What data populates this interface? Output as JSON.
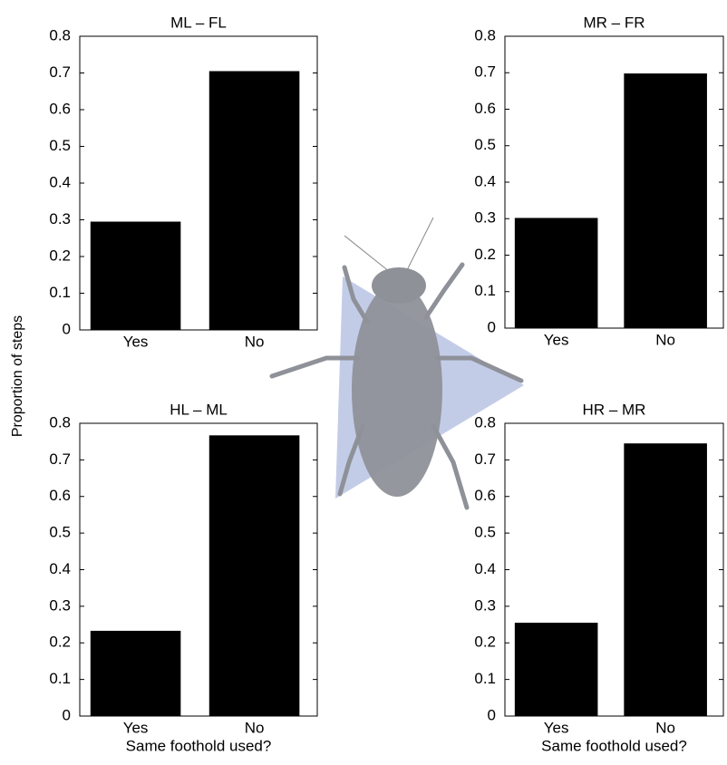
{
  "chart_data": [
    {
      "type": "bar",
      "title": "ML – FL",
      "ylabel": "Proportion of steps",
      "categories": [
        "Yes",
        "No"
      ],
      "values": [
        0.295,
        0.705
      ],
      "color": "#000000",
      "ylim": [
        0,
        0.8
      ],
      "yticks": [
        0,
        0.1,
        0.2,
        0.3,
        0.4,
        0.5,
        0.6,
        0.7,
        0.8
      ]
    },
    {
      "type": "bar",
      "title": "MR – FR",
      "categories": [
        "Yes",
        "No"
      ],
      "values": [
        0.302,
        0.698
      ],
      "color": "#000000",
      "ylim": [
        0,
        0.8
      ],
      "yticks": [
        0,
        0.1,
        0.2,
        0.3,
        0.4,
        0.5,
        0.6,
        0.7,
        0.8
      ]
    },
    {
      "type": "bar",
      "title": "HL – ML",
      "xlabel": "Same foothold used?",
      "categories": [
        "Yes",
        "No"
      ],
      "values": [
        0.233,
        0.767
      ],
      "color": "#000000",
      "ylim": [
        0,
        0.8
      ],
      "yticks": [
        0,
        0.1,
        0.2,
        0.3,
        0.4,
        0.5,
        0.6,
        0.7,
        0.8
      ]
    },
    {
      "type": "bar",
      "title": "HR – MR",
      "xlabel": "Same foothold used?",
      "categories": [
        "Yes",
        "No"
      ],
      "values": [
        0.255,
        0.745
      ],
      "color": "#000000",
      "ylim": [
        0,
        0.8
      ],
      "yticks": [
        0,
        0.1,
        0.2,
        0.3,
        0.4,
        0.5,
        0.6,
        0.7,
        0.8
      ]
    }
  ]
}
